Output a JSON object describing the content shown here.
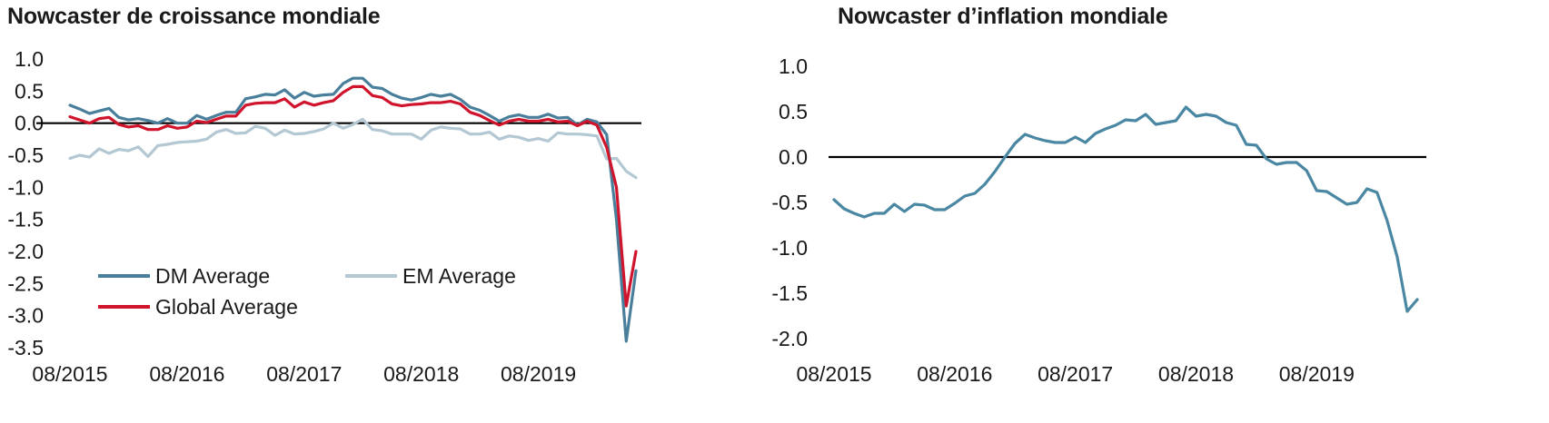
{
  "colors": {
    "dm": "#4a7f9c",
    "em": "#b3c8d3",
    "global": "#d0142c",
    "inflation": "#4a87a3",
    "zero_line": "#000000"
  },
  "chart_data": [
    {
      "type": "line",
      "title": "Nowcaster de croissance mondiale",
      "x_ticks": [
        "08/2015",
        "08/2016",
        "08/2017",
        "08/2018",
        "08/2019"
      ],
      "y_ticks": [
        "1.0",
        "0.5",
        "0.0",
        "-0.5",
        "-1.0",
        "-1.5",
        "-2.0",
        "-2.5",
        "-3.0",
        "-3.5"
      ],
      "ylim": [
        -3.5,
        1.0
      ],
      "x_start": "2015-08",
      "legend": "bottom-left",
      "series": [
        {
          "name": "DM Average",
          "color_key": "dm",
          "values": [
            0.28,
            0.22,
            0.15,
            0.19,
            0.23,
            0.09,
            0.05,
            0.07,
            0.04,
            0.0,
            0.07,
            0.0,
            0.0,
            0.12,
            0.06,
            0.12,
            0.17,
            0.17,
            0.38,
            0.41,
            0.45,
            0.44,
            0.52,
            0.39,
            0.48,
            0.42,
            0.44,
            0.45,
            0.62,
            0.7,
            0.7,
            0.56,
            0.54,
            0.45,
            0.39,
            0.36,
            0.4,
            0.45,
            0.42,
            0.45,
            0.37,
            0.25,
            0.2,
            0.12,
            0.03,
            0.1,
            0.13,
            0.09,
            0.09,
            0.14,
            0.08,
            0.09,
            -0.03,
            0.06,
            0.02,
            -0.18,
            -1.5,
            -3.4,
            -2.3
          ]
        },
        {
          "name": "EM Average",
          "color_key": "em",
          "values": [
            -0.55,
            -0.5,
            -0.53,
            -0.4,
            -0.47,
            -0.41,
            -0.43,
            -0.37,
            -0.52,
            -0.35,
            -0.33,
            -0.3,
            -0.29,
            -0.28,
            -0.25,
            -0.14,
            -0.1,
            -0.16,
            -0.15,
            -0.05,
            -0.08,
            -0.19,
            -0.11,
            -0.17,
            -0.16,
            -0.13,
            -0.09,
            0.0,
            -0.08,
            -0.02,
            0.06,
            -0.1,
            -0.12,
            -0.17,
            -0.17,
            -0.17,
            -0.25,
            -0.11,
            -0.06,
            -0.08,
            -0.09,
            -0.17,
            -0.17,
            -0.14,
            -0.25,
            -0.2,
            -0.22,
            -0.27,
            -0.24,
            -0.28,
            -0.15,
            -0.17,
            -0.17,
            -0.18,
            -0.2,
            -0.56,
            -0.55,
            -0.75,
            -0.85
          ]
        },
        {
          "name": "Global Average",
          "color_key": "global",
          "values": [
            0.1,
            0.05,
            0.0,
            0.07,
            0.09,
            -0.02,
            -0.06,
            -0.04,
            -0.1,
            -0.1,
            -0.04,
            -0.08,
            -0.06,
            0.03,
            0.01,
            0.06,
            0.11,
            0.11,
            0.28,
            0.31,
            0.32,
            0.32,
            0.38,
            0.25,
            0.33,
            0.28,
            0.32,
            0.35,
            0.48,
            0.57,
            0.57,
            0.43,
            0.4,
            0.3,
            0.27,
            0.29,
            0.3,
            0.32,
            0.32,
            0.34,
            0.3,
            0.17,
            0.12,
            0.04,
            -0.03,
            0.03,
            0.06,
            0.03,
            0.03,
            0.06,
            0.02,
            0.03,
            -0.04,
            0.03,
            -0.03,
            -0.38,
            -1.0,
            -2.85,
            -2.0
          ]
        }
      ]
    },
    {
      "type": "line",
      "title": "Nowcaster d’inflation mondiale",
      "x_ticks": [
        "08/2015",
        "08/2016",
        "08/2017",
        "08/2018",
        "08/2019"
      ],
      "y_ticks": [
        "1.0",
        "0.5",
        "0.0",
        "-0.5",
        "-1.0",
        "-1.5",
        "-2.0"
      ],
      "ylim": [
        -2.0,
        1.0
      ],
      "x_start": "2015-08",
      "series": [
        {
          "color_key": "inflation",
          "values": [
            -0.47,
            -0.57,
            -0.62,
            -0.66,
            -0.62,
            -0.62,
            -0.52,
            -0.6,
            -0.52,
            -0.53,
            -0.58,
            -0.58,
            -0.51,
            -0.43,
            -0.4,
            -0.3,
            -0.16,
            0.0,
            0.15,
            0.25,
            0.21,
            0.18,
            0.16,
            0.16,
            0.22,
            0.16,
            0.26,
            0.31,
            0.35,
            0.41,
            0.4,
            0.47,
            0.36,
            0.38,
            0.4,
            0.55,
            0.45,
            0.47,
            0.45,
            0.38,
            0.35,
            0.14,
            0.13,
            -0.02,
            -0.08,
            -0.06,
            -0.06,
            -0.15,
            -0.37,
            -0.38,
            -0.45,
            -0.52,
            -0.5,
            -0.35,
            -0.39,
            -0.7,
            -1.1,
            -1.7,
            -1.57
          ]
        }
      ]
    }
  ]
}
